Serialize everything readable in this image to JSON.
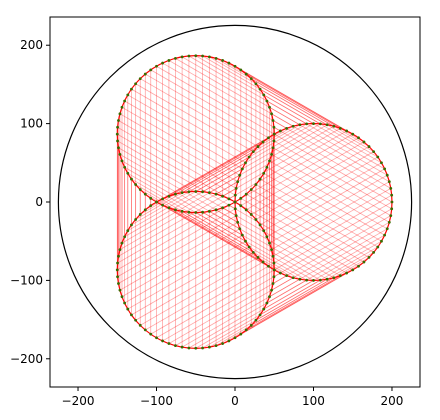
{
  "chart_data": {
    "type": "circles",
    "outer_circle": {
      "x": 0,
      "y": 0,
      "r": 225,
      "color": "#000000"
    },
    "circles": [
      {
        "x": -50,
        "y": 86.6,
        "r": 100
      },
      {
        "x": 100,
        "y": 0,
        "r": 100
      },
      {
        "x": -50,
        "y": -86.6,
        "r": 100
      }
    ],
    "points_per_circle": 72,
    "line_color": "#ff0000",
    "point_color": "#3a6b00",
    "xlim": [
      -235.7,
      235.7
    ],
    "ylim": [
      -236,
      236
    ],
    "xticks": [
      {
        "value": -200,
        "label": "−200"
      },
      {
        "value": -100,
        "label": "−100"
      },
      0,
      100,
      200
    ],
    "yticks": [
      {
        "value": -200,
        "label": "−200"
      },
      {
        "value": -100,
        "label": "−100"
      },
      0,
      100,
      200
    ]
  }
}
